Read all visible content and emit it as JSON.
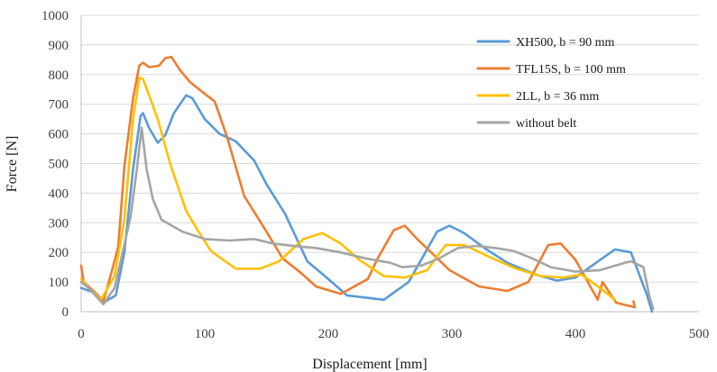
{
  "chart_data": {
    "type": "line",
    "title": "",
    "xlabel": "Displacement [mm]",
    "ylabel": "Force [N]",
    "xlim": [
      0,
      500
    ],
    "ylim": [
      0,
      1000
    ],
    "xticks": [
      0,
      100,
      200,
      300,
      400,
      500
    ],
    "yticks": [
      0,
      100,
      200,
      300,
      400,
      500,
      600,
      700,
      800,
      900,
      1000
    ],
    "grid": true,
    "legend_position": "top-right",
    "series": [
      {
        "name": "XH500, b = 90 mm",
        "color": "#5B9BD5",
        "points": [
          [
            0,
            80
          ],
          [
            10,
            65
          ],
          [
            18,
            30
          ],
          [
            28,
            55
          ],
          [
            35,
            200
          ],
          [
            42,
            480
          ],
          [
            48,
            660
          ],
          [
            50,
            670
          ],
          [
            55,
            620
          ],
          [
            62,
            570
          ],
          [
            68,
            595
          ],
          [
            75,
            670
          ],
          [
            85,
            730
          ],
          [
            90,
            720
          ],
          [
            100,
            650
          ],
          [
            112,
            600
          ],
          [
            125,
            575
          ],
          [
            140,
            510
          ],
          [
            150,
            430
          ],
          [
            165,
            330
          ],
          [
            183,
            170
          ],
          [
            200,
            110
          ],
          [
            215,
            55
          ],
          [
            245,
            40
          ],
          [
            265,
            100
          ],
          [
            288,
            270
          ],
          [
            298,
            290
          ],
          [
            310,
            265
          ],
          [
            328,
            210
          ],
          [
            345,
            165
          ],
          [
            368,
            125
          ],
          [
            385,
            105
          ],
          [
            400,
            115
          ],
          [
            415,
            160
          ],
          [
            432,
            210
          ],
          [
            445,
            200
          ],
          [
            458,
            55
          ],
          [
            462,
            0
          ]
        ]
      },
      {
        "name": "TFL15S, b = 100 mm",
        "color": "#ED7D31",
        "points": [
          [
            0,
            155
          ],
          [
            2,
            100
          ],
          [
            10,
            70
          ],
          [
            18,
            35
          ],
          [
            25,
            140
          ],
          [
            30,
            220
          ],
          [
            35,
            490
          ],
          [
            42,
            720
          ],
          [
            47,
            830
          ],
          [
            50,
            840
          ],
          [
            55,
            825
          ],
          [
            63,
            830
          ],
          [
            68,
            855
          ],
          [
            73,
            860
          ],
          [
            80,
            815
          ],
          [
            88,
            775
          ],
          [
            100,
            735
          ],
          [
            108,
            710
          ],
          [
            118,
            590
          ],
          [
            132,
            390
          ],
          [
            150,
            270
          ],
          [
            163,
            180
          ],
          [
            178,
            130
          ],
          [
            190,
            85
          ],
          [
            210,
            60
          ],
          [
            232,
            110
          ],
          [
            240,
            180
          ],
          [
            253,
            275
          ],
          [
            262,
            290
          ],
          [
            272,
            245
          ],
          [
            287,
            185
          ],
          [
            298,
            140
          ],
          [
            322,
            85
          ],
          [
            345,
            70
          ],
          [
            362,
            100
          ],
          [
            378,
            225
          ],
          [
            388,
            230
          ],
          [
            400,
            175
          ],
          [
            418,
            40
          ],
          [
            422,
            100
          ],
          [
            433,
            30
          ],
          [
            448,
            15
          ],
          [
            447,
            35
          ]
        ]
      },
      {
        "name": "2LL, b = 36 mm",
        "color": "#FFC000",
        "points": [
          [
            0,
            110
          ],
          [
            6,
            80
          ],
          [
            16,
            40
          ],
          [
            27,
            120
          ],
          [
            35,
            310
          ],
          [
            42,
            650
          ],
          [
            47,
            790
          ],
          [
            50,
            785
          ],
          [
            55,
            730
          ],
          [
            62,
            650
          ],
          [
            72,
            500
          ],
          [
            85,
            340
          ],
          [
            95,
            270
          ],
          [
            105,
            205
          ],
          [
            125,
            145
          ],
          [
            145,
            145
          ],
          [
            160,
            170
          ],
          [
            180,
            245
          ],
          [
            195,
            265
          ],
          [
            210,
            230
          ],
          [
            225,
            175
          ],
          [
            245,
            120
          ],
          [
            262,
            115
          ],
          [
            280,
            140
          ],
          [
            295,
            225
          ],
          [
            310,
            225
          ],
          [
            330,
            185
          ],
          [
            352,
            145
          ],
          [
            372,
            120
          ],
          [
            390,
            115
          ],
          [
            405,
            125
          ],
          [
            420,
            80
          ],
          [
            432,
            40
          ]
        ]
      },
      {
        "name": "without belt",
        "color": "#A5A5A5",
        "points": [
          [
            0,
            100
          ],
          [
            6,
            80
          ],
          [
            18,
            25
          ],
          [
            27,
            80
          ],
          [
            33,
            190
          ],
          [
            40,
            320
          ],
          [
            45,
            480
          ],
          [
            49,
            620
          ],
          [
            53,
            480
          ],
          [
            58,
            380
          ],
          [
            65,
            310
          ],
          [
            82,
            270
          ],
          [
            100,
            245
          ],
          [
            120,
            240
          ],
          [
            140,
            245
          ],
          [
            155,
            230
          ],
          [
            175,
            220
          ],
          [
            190,
            215
          ],
          [
            210,
            200
          ],
          [
            230,
            180
          ],
          [
            250,
            165
          ],
          [
            260,
            150
          ],
          [
            275,
            155
          ],
          [
            290,
            180
          ],
          [
            305,
            215
          ],
          [
            320,
            222
          ],
          [
            335,
            215
          ],
          [
            350,
            205
          ],
          [
            365,
            180
          ],
          [
            380,
            150
          ],
          [
            400,
            135
          ],
          [
            420,
            140
          ],
          [
            440,
            165
          ],
          [
            445,
            170
          ],
          [
            455,
            150
          ],
          [
            460,
            50
          ],
          [
            463,
            10
          ]
        ]
      }
    ]
  }
}
